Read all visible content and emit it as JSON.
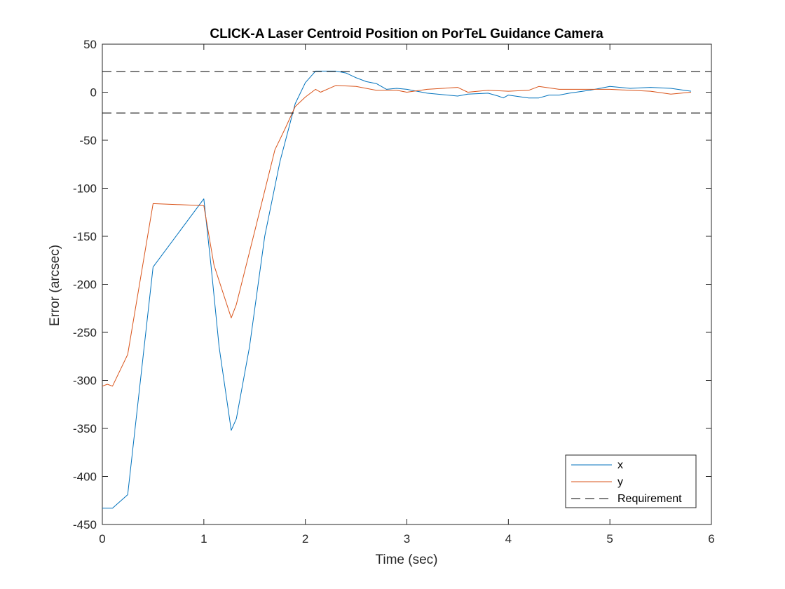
{
  "chart_data": {
    "type": "line",
    "title": "CLICK-A Laser Centroid Position on PorTeL Guidance Camera",
    "xlabel": "Time (sec)",
    "ylabel": "Error (arcsec)",
    "xlim": [
      0,
      6
    ],
    "ylim": [
      -450,
      50
    ],
    "xticks": [
      "0",
      "1",
      "2",
      "3",
      "4",
      "5",
      "6"
    ],
    "yticks": [
      "50",
      "0",
      "-50",
      "-100",
      "-150",
      "-200",
      "-250",
      "-300",
      "-350",
      "-400",
      "-450"
    ],
    "grid": false,
    "legend_position": "bottom-right",
    "series": [
      {
        "name": "x",
        "color": "#0072BD",
        "style": "solid",
        "x": [
          0,
          0.1,
          0.25,
          0.5,
          1.0,
          1.07,
          1.15,
          1.27,
          1.32,
          1.45,
          1.6,
          1.75,
          1.9,
          2.0,
          2.1,
          2.2,
          2.3,
          2.4,
          2.5,
          2.6,
          2.7,
          2.8,
          2.9,
          3.0,
          3.2,
          3.5,
          3.6,
          3.8,
          3.9,
          3.95,
          4.0,
          4.2,
          4.3,
          4.4,
          4.5,
          4.6,
          4.8,
          5.0,
          5.2,
          5.4,
          5.6,
          5.8
        ],
        "y": [
          -433,
          -433,
          -419,
          -182,
          -111,
          -180,
          -265,
          -352,
          -340,
          -265,
          -150,
          -72,
          -12,
          10,
          22,
          22,
          22,
          20,
          15,
          11,
          9,
          3,
          4,
          3,
          -1,
          -4,
          -2,
          -1,
          -4,
          -6,
          -3,
          -6,
          -6,
          -3,
          -3,
          -1,
          2,
          6,
          4,
          5,
          4,
          1
        ]
      },
      {
        "name": "y",
        "color": "#D95319",
        "style": "solid",
        "x": [
          0,
          0.05,
          0.1,
          0.25,
          0.5,
          1.0,
          1.1,
          1.27,
          1.32,
          1.5,
          1.7,
          1.8,
          1.9,
          2.0,
          2.1,
          2.15,
          2.3,
          2.5,
          2.7,
          2.9,
          3.0,
          3.2,
          3.5,
          3.6,
          3.8,
          4.0,
          4.2,
          4.3,
          4.5,
          4.8,
          5.0,
          5.2,
          5.4,
          5.6,
          5.8
        ],
        "y": [
          -306,
          -304,
          -306,
          -273,
          -116,
          -118,
          -180,
          -235,
          -221,
          -145,
          -60,
          -38,
          -15,
          -5,
          3,
          0,
          7,
          6,
          2,
          2,
          0,
          3,
          5,
          0,
          2,
          1,
          2,
          6,
          3,
          3,
          3,
          2,
          1,
          -2,
          0
        ]
      },
      {
        "name": "Requirement",
        "color": "#000000",
        "style": "dashed",
        "x": [
          0,
          6
        ],
        "y": [
          21.6,
          21.6
        ]
      },
      {
        "name": "Requirement",
        "color": "#000000",
        "style": "dashed",
        "x": [
          0,
          6
        ],
        "y": [
          -21.6,
          -21.6
        ],
        "legend": false
      }
    ]
  }
}
